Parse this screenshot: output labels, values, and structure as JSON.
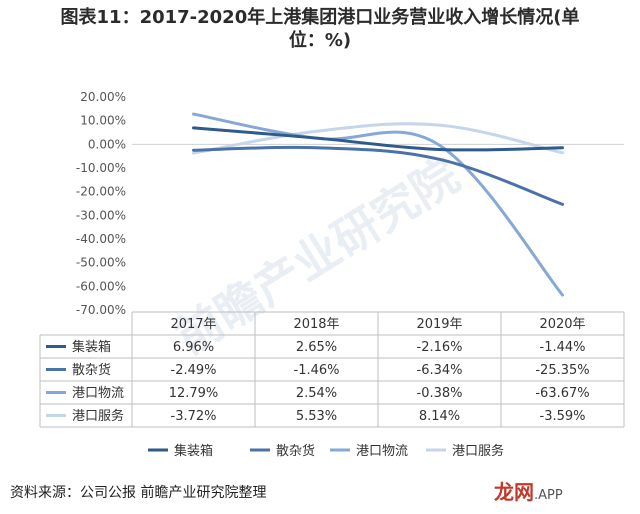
{
  "header": {
    "title_line1": "图表11：2017-2020年上港集团港口业务营业收入增长情况(单",
    "title_line2": "位：%)"
  },
  "footer": {
    "source": "资料来源：公司公报 前瞻产业研究院整理"
  },
  "watermark": {
    "text": "前瞻产业研究院",
    "brand": "龙网",
    "app": ".APP"
  },
  "colors": {
    "集装箱": "#2e5a8c",
    "散杂货": "#4a72a8",
    "港口物流": "#86a8d6",
    "港口服务": "#c5d5ea"
  },
  "chart_data": {
    "type": "line",
    "categories": [
      "2017年",
      "2018年",
      "2019年",
      "2020年"
    ],
    "ylim": [
      -70,
      20
    ],
    "yticks": [
      "20.00%",
      "10.00%",
      "0.00%",
      "-10.00%",
      "-20.00%",
      "-30.00%",
      "-40.00%",
      "-50.00%",
      "-60.00%",
      "-70.00%"
    ],
    "series": [
      {
        "name": "集装箱",
        "values": [
          6.96,
          2.65,
          -2.16,
          -1.44
        ],
        "labels": [
          "6.96%",
          "2.65%",
          "-2.16%",
          "-1.44%"
        ]
      },
      {
        "name": "散杂货",
        "values": [
          -2.49,
          -1.46,
          -6.34,
          -25.35
        ],
        "labels": [
          "-2.49%",
          "-1.46%",
          "-6.34%",
          "-25.35%"
        ]
      },
      {
        "name": "港口物流",
        "values": [
          12.79,
          2.54,
          -0.38,
          -63.67
        ],
        "labels": [
          "12.79%",
          "2.54%",
          "-0.38%",
          "-63.67%"
        ]
      },
      {
        "name": "港口服务",
        "values": [
          -3.72,
          5.53,
          8.14,
          -3.59
        ],
        "labels": [
          "-3.72%",
          "5.53%",
          "8.14%",
          "-3.59%"
        ]
      }
    ]
  }
}
